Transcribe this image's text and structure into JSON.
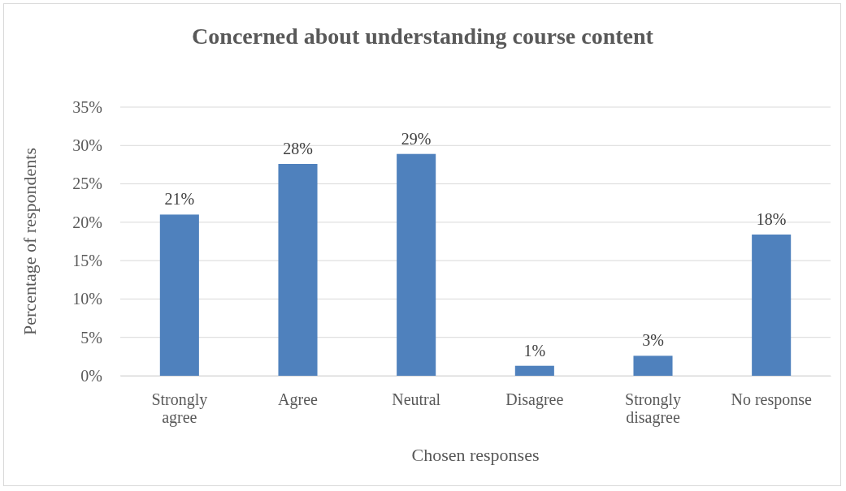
{
  "chart_data": {
    "type": "bar",
    "title": "Concerned about understanding course content",
    "xlabel": "Chosen responses",
    "ylabel": "Percentage of respondents",
    "categories": [
      "Strongly agree",
      "Agree",
      "Neutral",
      "Disagree",
      "Strongly disagree",
      "No response"
    ],
    "values": [
      21.0,
      27.6,
      28.9,
      1.3,
      2.6,
      18.4
    ],
    "value_labels": [
      "21%",
      "28%",
      "29%",
      "1%",
      "3%",
      "18%"
    ],
    "color": "#4f81bd",
    "ylim": [
      0,
      35
    ],
    "yticks": [
      {
        "value": 0,
        "label": "0%"
      },
      {
        "value": 5,
        "label": "5%"
      },
      {
        "value": 10,
        "label": "10%"
      },
      {
        "value": 15,
        "label": "15%"
      },
      {
        "value": 20,
        "label": "20%"
      },
      {
        "value": 25,
        "label": "25%"
      },
      {
        "value": 30,
        "label": "30%"
      },
      {
        "value": 35,
        "label": "35%"
      }
    ],
    "grid": "y"
  }
}
